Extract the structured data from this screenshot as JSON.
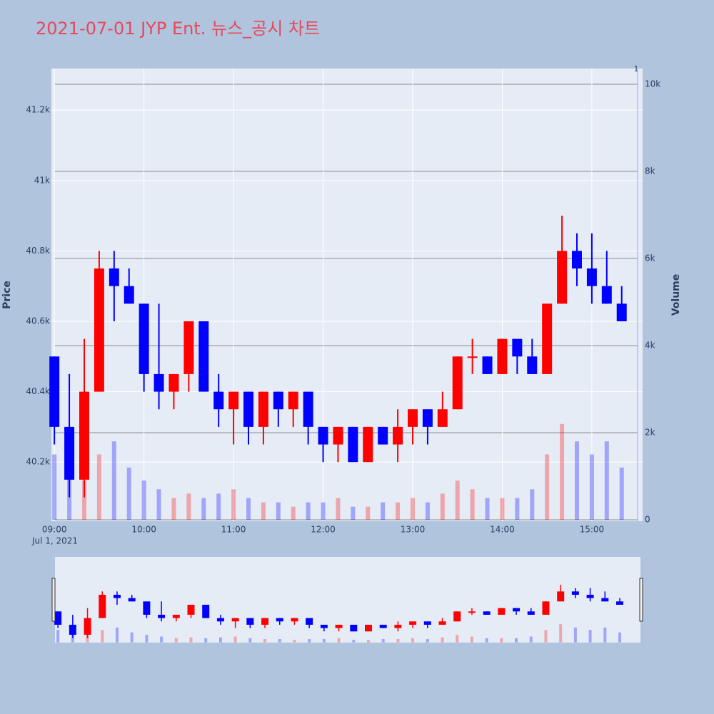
{
  "chart_data": {
    "type": "candlestick",
    "title": "2021-07-01 JYP Ent. 뉴스_공시 차트",
    "ylabel": "Price",
    "y2label": "Volume",
    "annotation": "1",
    "x": [
      "2021-07-01 09:00",
      "2021-07-01 09:10",
      "2021-07-01 09:20",
      "2021-07-01 09:30",
      "2021-07-01 09:40",
      "2021-07-01 09:50",
      "2021-07-01 10:00",
      "2021-07-01 10:10",
      "2021-07-01 10:20",
      "2021-07-01 10:30",
      "2021-07-01 10:40",
      "2021-07-01 10:50",
      "2021-07-01 11:00",
      "2021-07-01 11:10",
      "2021-07-01 11:20",
      "2021-07-01 11:30",
      "2021-07-01 11:40",
      "2021-07-01 11:50",
      "2021-07-01 12:00",
      "2021-07-01 12:10",
      "2021-07-01 12:20",
      "2021-07-01 12:30",
      "2021-07-01 12:40",
      "2021-07-01 12:50",
      "2021-07-01 13:00",
      "2021-07-01 13:10",
      "2021-07-01 13:20",
      "2021-07-01 13:30",
      "2021-07-01 13:40",
      "2021-07-01 13:50",
      "2021-07-01 14:00",
      "2021-07-01 14:10",
      "2021-07-01 14:20",
      "2021-07-01 14:30",
      "2021-07-01 14:40",
      "2021-07-01 14:50",
      "2021-07-01 15:00",
      "2021-07-01 15:10",
      "2021-07-01 15:20"
    ],
    "open": [
      40500,
      40300,
      40150,
      40400,
      40750,
      40700,
      40650,
      40450,
      40400,
      40450,
      40600,
      40400,
      40350,
      40400,
      40300,
      40400,
      40350,
      40400,
      40300,
      40250,
      40300,
      40200,
      40300,
      40250,
      40300,
      40350,
      40300,
      40350,
      40500,
      40500,
      40450,
      40550,
      40500,
      40450,
      40650,
      40800,
      40750,
      40700,
      40650
    ],
    "high": [
      40500,
      40450,
      40550,
      40800,
      40800,
      40750,
      40650,
      40650,
      40450,
      40600,
      40600,
      40450,
      40400,
      40400,
      40400,
      40400,
      40400,
      40400,
      40300,
      40300,
      40300,
      40300,
      40300,
      40350,
      40350,
      40350,
      40400,
      40500,
      40550,
      40500,
      40550,
      40550,
      40550,
      40650,
      40900,
      40850,
      40850,
      40800,
      40700
    ],
    "low": [
      40250,
      40100,
      40100,
      40400,
      40600,
      40650,
      40400,
      40350,
      40350,
      40400,
      40400,
      40300,
      40250,
      40250,
      40250,
      40300,
      40300,
      40250,
      40200,
      40200,
      40200,
      40200,
      40250,
      40200,
      40250,
      40250,
      40300,
      40350,
      40450,
      40450,
      40450,
      40450,
      40450,
      40450,
      40650,
      40700,
      40650,
      40650,
      40600
    ],
    "close": [
      40300,
      40150,
      40400,
      40750,
      40700,
      40650,
      40450,
      40400,
      40450,
      40600,
      40400,
      40350,
      40400,
      40300,
      40400,
      40350,
      40400,
      40300,
      40250,
      40300,
      40200,
      40300,
      40250,
      40300,
      40350,
      40300,
      40350,
      40500,
      40500,
      40450,
      40550,
      40500,
      40450,
      40650,
      40800,
      40750,
      40700,
      40650,
      40600
    ],
    "volume": [
      1500,
      1200,
      900,
      1500,
      1800,
      1200,
      900,
      700,
      500,
      600,
      500,
      600,
      700,
      500,
      400,
      400,
      300,
      400,
      400,
      500,
      300,
      300,
      400,
      400,
      500,
      400,
      600,
      900,
      700,
      500,
      500,
      500,
      700,
      1500,
      2200,
      1800,
      1500,
      1800,
      1200
    ],
    "increasing_color": "#ff0000",
    "decreasing_color": "#0000ff",
    "xlim": [
      "2021-07-01 08:58",
      "2021-07-01 15:34"
    ],
    "xticks": [
      {
        "value": "2021-07-01 09:00",
        "label": "09:00"
      },
      {
        "value": "2021-07-01 10:00",
        "label": "10:00"
      },
      {
        "value": "2021-07-01 11:00",
        "label": "11:00"
      },
      {
        "value": "2021-07-01 12:00",
        "label": "12:00"
      },
      {
        "value": "2021-07-01 13:00",
        "label": "13:00"
      },
      {
        "value": "2021-07-01 14:00",
        "label": "14:00"
      },
      {
        "value": "2021-07-01 15:00",
        "label": "15:00"
      }
    ],
    "xtick_sublabel": "Jul 1, 2021",
    "ylim": [
      40032,
      41318
    ],
    "yticks": [
      {
        "value": 40200,
        "label": "40.2k"
      },
      {
        "value": 40400,
        "label": "40.4k"
      },
      {
        "value": 40600,
        "label": "40.6k"
      },
      {
        "value": 40800,
        "label": "40.8k"
      },
      {
        "value": 41000,
        "label": "41k"
      },
      {
        "value": 41200,
        "label": "41.2k"
      }
    ],
    "y2lim": [
      -33,
      10361
    ],
    "y2ticks": [
      0,
      {
        "value": 2000,
        "label": "2k"
      },
      {
        "value": 4000,
        "label": "4k"
      },
      {
        "value": 6000,
        "label": "6k"
      },
      {
        "value": 8000,
        "label": "8k"
      },
      {
        "value": 10000,
        "label": "10k"
      }
    ],
    "grid": true,
    "rangeslider": true
  }
}
